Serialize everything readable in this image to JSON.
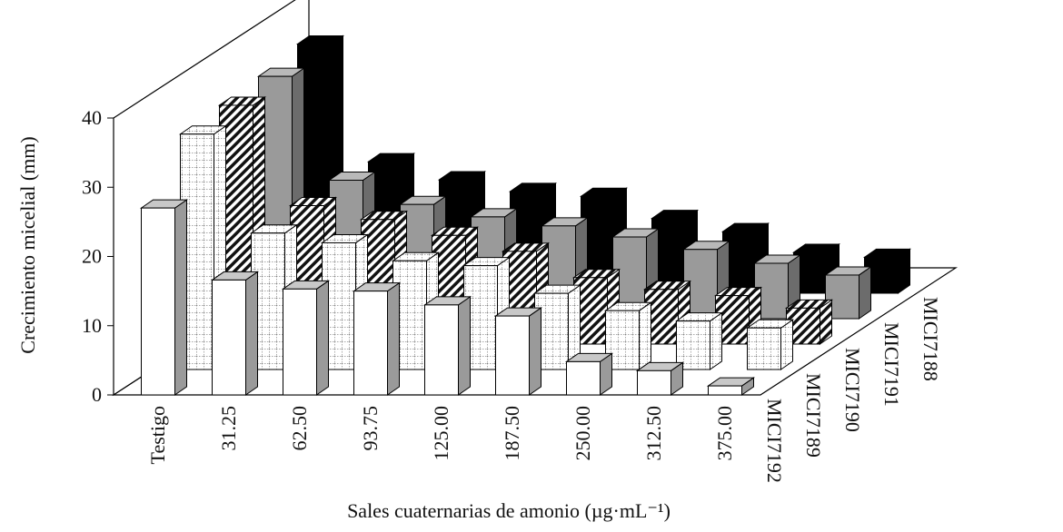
{
  "chart_data": {
    "type": "bar3d",
    "x_label": "Sales cuaternarias de amonio (µg·mL⁻¹)",
    "y_label": "Crecimiento micelial (mm)",
    "categories": [
      "Testigo",
      "31.25",
      "62.50",
      "93.75",
      "125.00",
      "187.50",
      "250.00",
      "312.50",
      "375.00"
    ],
    "series": [
      {
        "name": "MICI7192",
        "color": "#ffffff",
        "pattern": "none",
        "values": [
          27,
          16.6,
          15.3,
          15,
          13,
          11.4,
          4.8,
          3.5,
          1.3
        ]
      },
      {
        "name": "MICI7189",
        "color": "#ffffff",
        "pattern": "grid",
        "values": [
          34,
          19.7,
          18.3,
          15.7,
          15,
          11,
          8.5,
          7,
          6
        ]
      },
      {
        "name": "MICI7190",
        "color": "#ffffff",
        "pattern": "hatch",
        "values": [
          34.5,
          20,
          18,
          15.7,
          13.4,
          9.6,
          7.9,
          7,
          5.2
        ]
      },
      {
        "name": "MICI7191",
        "color": "#9a9a9a",
        "pattern": "none",
        "values": [
          35,
          20,
          16.5,
          14.7,
          13.4,
          11.8,
          10,
          8,
          6.3
        ]
      },
      {
        "name": "MICI7188",
        "color": "#000000",
        "pattern": "none",
        "values": [
          36,
          19,
          16.4,
          14.7,
          14,
          10.8,
          8.9,
          5.9,
          5.2
        ]
      }
    ],
    "ylim": [
      0,
      40
    ],
    "yticks": [
      0,
      10,
      20,
      30,
      40
    ],
    "grid": false
  }
}
